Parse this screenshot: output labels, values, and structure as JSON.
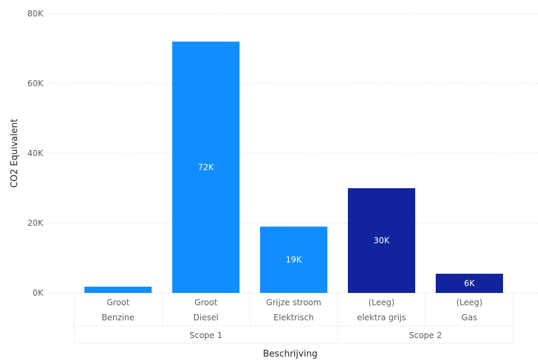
{
  "chart_data": {
    "type": "bar",
    "ylabel": "CO2 Equivalent",
    "xlabel": "Beschrijving",
    "ylim": [
      0,
      80000
    ],
    "y_ticks": [
      "0K",
      "20K",
      "40K",
      "60K",
      "80K"
    ],
    "grid": "horizontal dotted",
    "categories": [
      {
        "line1": "Groot",
        "line2": "Benzine",
        "group": "Scope 1",
        "value": 1800,
        "label": "",
        "color": "#118dff"
      },
      {
        "line1": "Groot",
        "line2": "Diesel",
        "group": "Scope 1",
        "value": 72000,
        "label": "72K",
        "color": "#118dff"
      },
      {
        "line1": "Grijze stroom",
        "line2": "Elektrisch",
        "group": "Scope 1",
        "value": 19000,
        "label": "19K",
        "color": "#118dff"
      },
      {
        "line1": "(Leeg)",
        "line2": "elektra grijs",
        "group": "Scope 2",
        "value": 30000,
        "label": "30K",
        "color": "#12239e"
      },
      {
        "line1": "(Leeg)",
        "line2": "Gas",
        "group": "Scope 2",
        "value": 5500,
        "label": "6K",
        "color": "#12239e"
      }
    ],
    "groups": [
      "Scope 1",
      "Scope 2"
    ]
  }
}
